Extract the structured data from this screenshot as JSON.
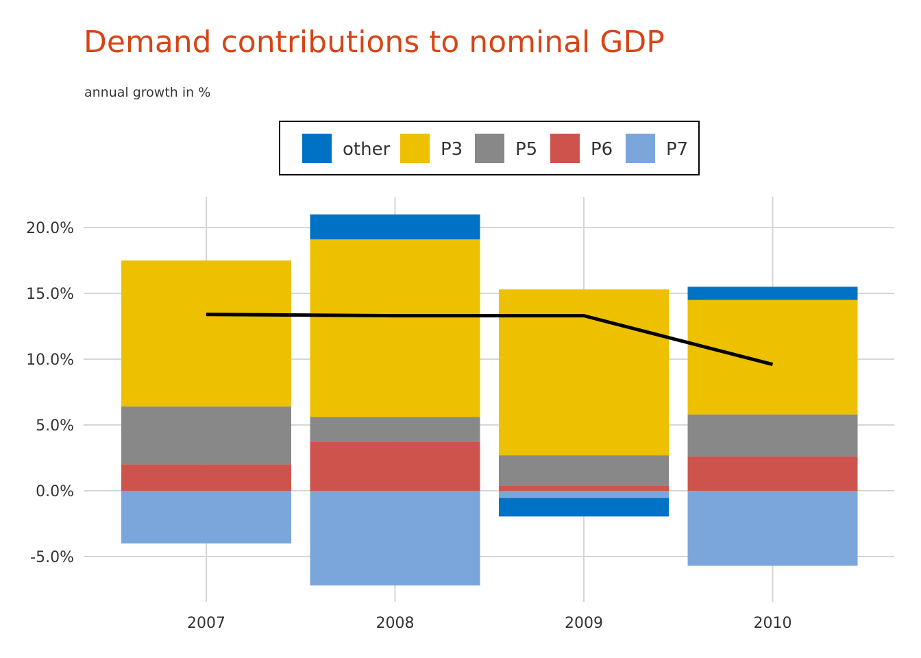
{
  "chart_data": {
    "type": "bar",
    "title": "Demand contributions to nominal GDP",
    "subtitle": "annual growth in %",
    "categories": [
      "2007",
      "2008",
      "2009",
      "2010"
    ],
    "stack_order_bottom_to_top": [
      "P6",
      "P5",
      "P3",
      "other"
    ],
    "series": [
      {
        "name": "other",
        "color": "#0072c6",
        "values": [
          0.0,
          1.9,
          -1.4,
          1.0
        ]
      },
      {
        "name": "P3",
        "color": "#edc000",
        "values": [
          11.1,
          13.5,
          12.6,
          8.7
        ]
      },
      {
        "name": "P5",
        "color": "#888888",
        "values": [
          4.4,
          1.9,
          2.3,
          3.2
        ]
      },
      {
        "name": "P6",
        "color": "#cd534c",
        "values": [
          2.0,
          3.7,
          0.4,
          2.6
        ]
      },
      {
        "name": "P7",
        "color": "#7aa6dc",
        "values": [
          -4.0,
          -7.2,
          -0.55,
          -5.7
        ]
      }
    ],
    "line": {
      "color": "#000000",
      "values": [
        13.4,
        13.3,
        13.3,
        9.6
      ]
    },
    "ylim": [
      -8.2,
      22.2
    ],
    "yticks": [
      -5,
      0,
      5,
      10,
      15,
      20
    ],
    "ytick_labels": [
      "-5.0%",
      "0.0%",
      "5.0%",
      "10.0%",
      "15.0%",
      "20.0%"
    ],
    "legend_order": [
      "other",
      "P3",
      "P5",
      "P6",
      "P7"
    ],
    "legend_position": "top",
    "grid": true,
    "xlabel": "",
    "ylabel": ""
  }
}
